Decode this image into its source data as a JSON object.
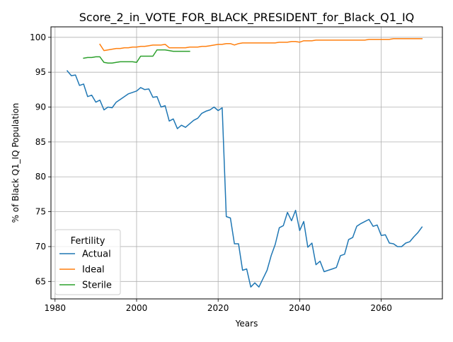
{
  "chart_data": {
    "type": "line",
    "title": "Score_2_in_VOTE_FOR_BLACK_PRESIDENT_for_Black_Q1_IQ",
    "xlabel": "Years",
    "ylabel": "% of Black Q1_IQ Population",
    "xlim": [
      1979,
      2075
    ],
    "ylim": [
      62.5,
      101.5
    ],
    "xticks": [
      1980,
      2000,
      2020,
      2040,
      2060
    ],
    "yticks": [
      65,
      70,
      75,
      80,
      85,
      90,
      95,
      100
    ],
    "grid": true,
    "legend": {
      "title": "Fertility",
      "placement": "lower-left"
    },
    "series": [
      {
        "name": "Actual",
        "color": "#1f77b4",
        "x": [
          1983,
          1984,
          1985,
          1986,
          1987,
          1988,
          1989,
          1990,
          1991,
          1992,
          1993,
          1994,
          1995,
          1996,
          1997,
          1998,
          1999,
          2000,
          2001,
          2002,
          2003,
          2004,
          2005,
          2006,
          2007,
          2008,
          2009,
          2010,
          2011,
          2012,
          2013,
          2014,
          2015,
          2016,
          2017,
          2018,
          2019,
          2020,
          2021,
          2022,
          2023,
          2024,
          2025,
          2026,
          2027,
          2028,
          2029,
          2030,
          2031,
          2032,
          2033,
          2034,
          2035,
          2036,
          2037,
          2038,
          2039,
          2040,
          2041,
          2042,
          2043,
          2044,
          2045,
          2046,
          2047,
          2048,
          2049,
          2050,
          2051,
          2052,
          2053,
          2054,
          2055,
          2056,
          2057,
          2058,
          2059,
          2060,
          2061,
          2062,
          2063,
          2064,
          2065,
          2066,
          2067,
          2068,
          2069,
          2070
        ],
        "y": [
          95.2,
          94.5,
          94.6,
          93.1,
          93.3,
          91.5,
          91.7,
          90.7,
          91.0,
          89.6,
          90.0,
          89.9,
          90.7,
          91.1,
          91.5,
          91.9,
          92.1,
          92.3,
          92.8,
          92.5,
          92.6,
          91.4,
          91.5,
          90.0,
          90.2,
          88.0,
          88.3,
          86.9,
          87.4,
          87.1,
          87.6,
          88.1,
          88.4,
          89.1,
          89.4,
          89.6,
          90.0,
          89.5,
          89.9,
          74.3,
          74.1,
          70.4,
          70.4,
          66.6,
          66.8,
          64.2,
          64.8,
          64.2,
          65.4,
          66.6,
          68.7,
          70.3,
          72.7,
          73.0,
          74.9,
          73.7,
          75.2,
          72.3,
          73.6,
          69.9,
          70.5,
          67.4,
          67.9,
          66.4,
          66.6,
          66.8,
          67.0,
          68.7,
          68.9,
          71.0,
          71.3,
          72.9,
          73.3,
          73.6,
          73.9,
          72.9,
          73.1,
          71.6,
          71.7,
          70.5,
          70.4,
          70.0,
          70.0,
          70.5,
          70.7,
          71.4,
          72.0,
          72.8
        ]
      },
      {
        "name": "Ideal",
        "color": "#ff7f0e",
        "x": [
          1991,
          1992,
          1993,
          1994,
          1995,
          1996,
          1997,
          1998,
          1999,
          2000,
          2001,
          2002,
          2003,
          2004,
          2005,
          2006,
          2007,
          2008,
          2009,
          2010,
          2011,
          2012,
          2013,
          2014,
          2015,
          2016,
          2017,
          2018,
          2019,
          2020,
          2021,
          2022,
          2023,
          2024,
          2025,
          2026,
          2027,
          2028,
          2029,
          2030,
          2031,
          2032,
          2033,
          2034,
          2035,
          2036,
          2037,
          2038,
          2039,
          2040,
          2041,
          2042,
          2043,
          2044,
          2045,
          2046,
          2047,
          2048,
          2049,
          2050,
          2051,
          2052,
          2053,
          2054,
          2055,
          2056,
          2057,
          2058,
          2059,
          2060,
          2061,
          2062,
          2063,
          2064,
          2065,
          2066,
          2067,
          2068,
          2069,
          2070
        ],
        "y": [
          99.0,
          98.1,
          98.2,
          98.3,
          98.4,
          98.4,
          98.5,
          98.5,
          98.6,
          98.6,
          98.7,
          98.7,
          98.8,
          98.9,
          98.9,
          98.9,
          99.0,
          98.5,
          98.5,
          98.5,
          98.5,
          98.5,
          98.6,
          98.6,
          98.6,
          98.7,
          98.7,
          98.8,
          98.9,
          99.0,
          99.0,
          99.1,
          99.1,
          98.9,
          99.1,
          99.2,
          99.2,
          99.2,
          99.2,
          99.2,
          99.2,
          99.2,
          99.2,
          99.2,
          99.3,
          99.3,
          99.3,
          99.4,
          99.4,
          99.3,
          99.5,
          99.5,
          99.5,
          99.6,
          99.6,
          99.6,
          99.6,
          99.6,
          99.6,
          99.6,
          99.6,
          99.6,
          99.6,
          99.6,
          99.6,
          99.6,
          99.7,
          99.7,
          99.7,
          99.7,
          99.7,
          99.7,
          99.8,
          99.8,
          99.8,
          99.8,
          99.8,
          99.8,
          99.8,
          99.8
        ]
      },
      {
        "name": "Sterile",
        "color": "#2ca02c",
        "x": [
          1987,
          1988,
          1989,
          1990,
          1991,
          1992,
          1993,
          1994,
          1995,
          1996,
          1997,
          1998,
          1999,
          2000,
          2001,
          2002,
          2003,
          2004,
          2005,
          2006,
          2007,
          2008,
          2009,
          2010,
          2011,
          2012,
          2013
        ],
        "y": [
          97.0,
          97.1,
          97.1,
          97.2,
          97.2,
          96.4,
          96.3,
          96.3,
          96.4,
          96.5,
          96.5,
          96.5,
          96.5,
          96.4,
          97.3,
          97.3,
          97.3,
          97.3,
          98.2,
          98.2,
          98.2,
          98.1,
          98.0,
          98.0,
          98.0,
          98.0,
          98.0
        ]
      }
    ]
  }
}
